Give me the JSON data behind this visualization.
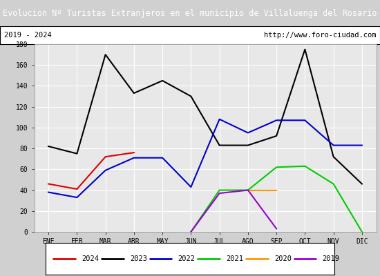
{
  "title": "Evolucion Nº Turistas Extranjeros en el municipio de Villaluenga del Rosario",
  "subtitle_left": "2019 - 2024",
  "subtitle_right": "http://www.foro-ciudad.com",
  "title_bg_color": "#4472c4",
  "title_text_color": "white",
  "months": [
    "ENE",
    "FEB",
    "MAR",
    "ABR",
    "MAY",
    "JUN",
    "JUL",
    "AGO",
    "SEP",
    "OCT",
    "NOV",
    "DIC"
  ],
  "series": {
    "2024": {
      "color": "#dd0000",
      "data": [
        46,
        41,
        72,
        76,
        null,
        null,
        null,
        null,
        null,
        null,
        null,
        null
      ]
    },
    "2023": {
      "color": "#000000",
      "data": [
        82,
        75,
        170,
        133,
        145,
        130,
        83,
        83,
        92,
        175,
        72,
        46
      ]
    },
    "2022": {
      "color": "#0000cc",
      "data": [
        38,
        33,
        59,
        71,
        71,
        43,
        108,
        95,
        107,
        107,
        83,
        83
      ]
    },
    "2021": {
      "color": "#00cc00",
      "data": [
        null,
        null,
        null,
        null,
        null,
        0,
        40,
        40,
        62,
        63,
        46,
        0
      ]
    },
    "2020": {
      "color": "#ff9900",
      "data": [
        null,
        null,
        null,
        null,
        null,
        null,
        null,
        40,
        40,
        null,
        null,
        null
      ]
    },
    "2019": {
      "color": "#9900cc",
      "data": [
        null,
        null,
        null,
        null,
        null,
        0,
        37,
        40,
        3,
        null,
        null,
        null
      ]
    }
  },
  "ylim": [
    0,
    180
  ],
  "yticks": [
    0,
    20,
    40,
    60,
    80,
    100,
    120,
    140,
    160,
    180
  ],
  "plot_bg_color": "#e8e8e8",
  "grid_color": "white",
  "legend_order": [
    "2024",
    "2023",
    "2022",
    "2021",
    "2020",
    "2019"
  ],
  "outer_bg": "#d0d0d0"
}
